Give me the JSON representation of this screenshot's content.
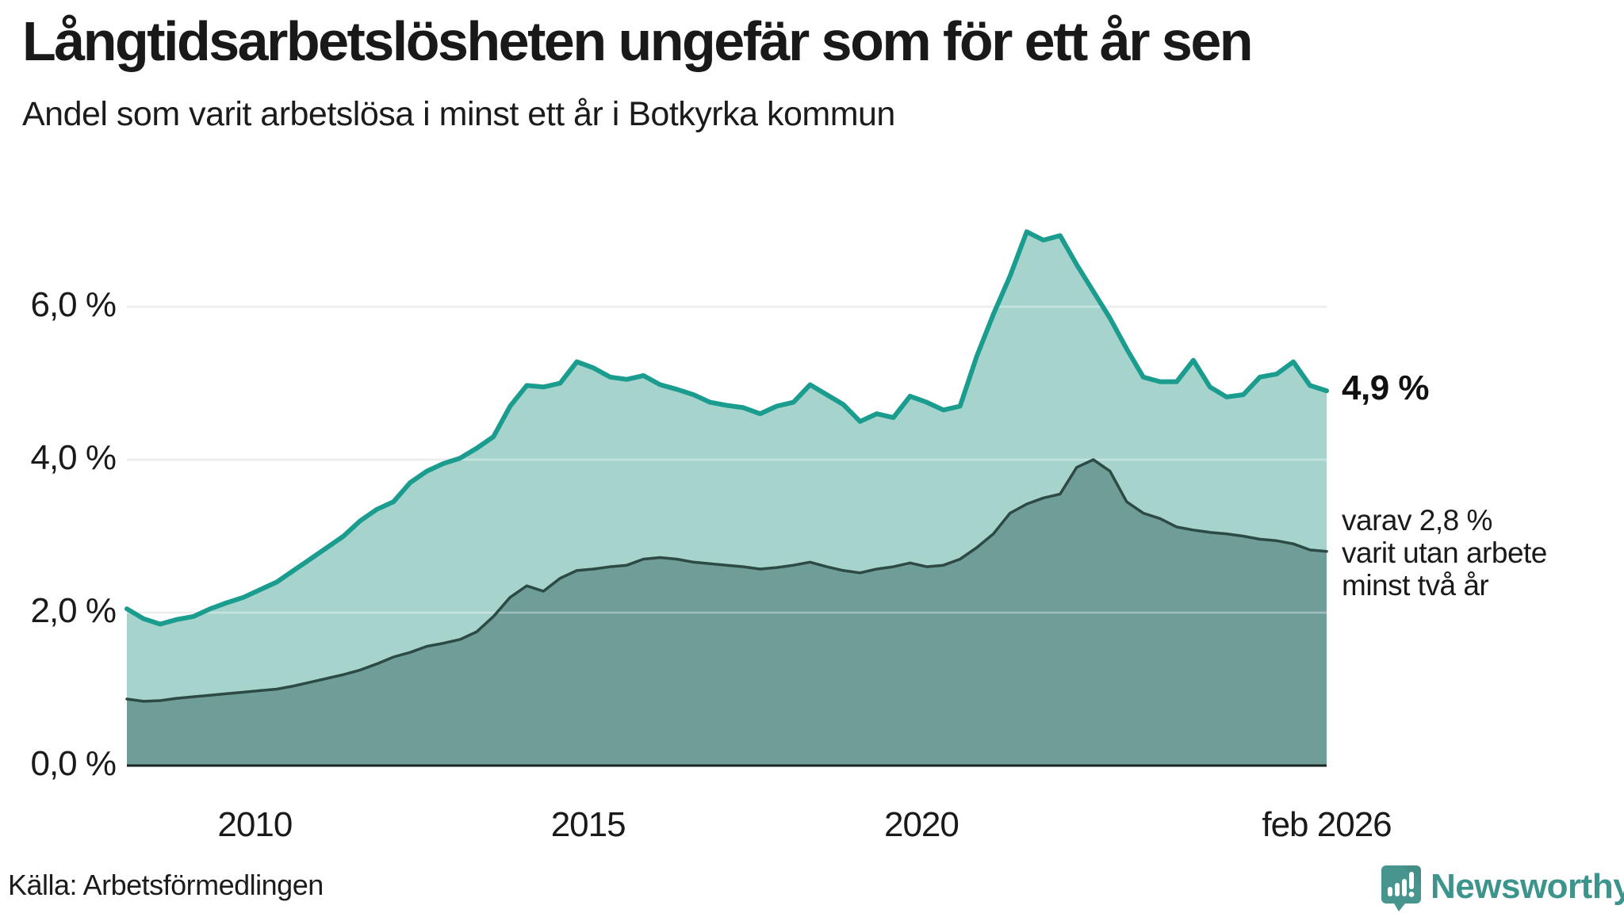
{
  "title": "Långtidsarbetslösheten ungefär som för ett år sen",
  "subtitle": "Andel som varit arbetslösa i minst ett år i Botkyrka kommun",
  "source": "Källa: Arbetsförmedlingen",
  "annotations": {
    "latest_total": "4,9 %",
    "two_year_note": "varav 2,8 %\nvarit utan arbete\nminst två år"
  },
  "logo": {
    "brand": "Newsworthy",
    "icon": "newsworthy-speech-bubble-chart-icon",
    "brand_color": "#3d948c",
    "icon_color": "#47958e",
    "icon_shade_color": "#3c857f"
  },
  "colors": {
    "total_line": "#1a9c8e",
    "total_fill": "#a6d4cd",
    "two_year_line": "#2d4a45",
    "two_year_fill": "#6f9e99",
    "gridline": "#e2e2e2",
    "gridline_overlay": "rgba(255,255,255,0.35)",
    "axis_line": "#1b2624",
    "text": "#1a1a1a"
  },
  "chart_data": {
    "type": "area",
    "title": "Långtidsarbetslösheten ungefär som för ett år sen",
    "subtitle": "Andel som varit arbetslösa i minst ett år i Botkyrka kommun",
    "unit": "%",
    "x_range": [
      2008.08,
      2026.08
    ],
    "ylim": [
      0,
      7.9
    ],
    "grid": "horizontal",
    "y_ticks": [
      {
        "label": "0,0 %",
        "value": 0
      },
      {
        "label": "2,0 %",
        "value": 2
      },
      {
        "label": "4,0 %",
        "value": 4
      },
      {
        "label": "6,0 %",
        "value": 6
      }
    ],
    "x_ticks": [
      {
        "label": "2010",
        "year": 2010.0
      },
      {
        "label": "2015",
        "year": 2015.0
      },
      {
        "label": "2020",
        "year": 2020.0
      },
      {
        "label": "feb 2026",
        "year": 2026.08
      }
    ],
    "x": [
      2008.08,
      2008.33,
      2008.58,
      2008.83,
      2009.08,
      2009.33,
      2009.58,
      2009.83,
      2010.08,
      2010.33,
      2010.58,
      2010.83,
      2011.08,
      2011.33,
      2011.58,
      2011.83,
      2012.08,
      2012.33,
      2012.58,
      2012.83,
      2013.08,
      2013.33,
      2013.58,
      2013.83,
      2014.08,
      2014.33,
      2014.58,
      2014.83,
      2015.08,
      2015.33,
      2015.58,
      2015.83,
      2016.08,
      2016.33,
      2016.58,
      2016.83,
      2017.08,
      2017.33,
      2017.58,
      2017.83,
      2018.08,
      2018.33,
      2018.58,
      2018.83,
      2019.08,
      2019.33,
      2019.58,
      2019.83,
      2020.08,
      2020.33,
      2020.58,
      2020.83,
      2021.08,
      2021.33,
      2021.58,
      2021.83,
      2022.08,
      2022.33,
      2022.58,
      2022.83,
      2023.08,
      2023.33,
      2023.58,
      2023.83,
      2024.08,
      2024.33,
      2024.58,
      2024.83,
      2025.08,
      2025.33,
      2025.58,
      2025.83,
      2026.08
    ],
    "series": [
      {
        "name": "Arbetslösa minst ett år",
        "end_label": "4,9 %",
        "values": [
          2.05,
          1.92,
          1.85,
          1.91,
          1.95,
          2.05,
          2.13,
          2.2,
          2.3,
          2.4,
          2.55,
          2.7,
          2.85,
          3.0,
          3.2,
          3.35,
          3.45,
          3.7,
          3.85,
          3.95,
          4.02,
          4.15,
          4.3,
          4.7,
          4.97,
          4.95,
          5.0,
          5.28,
          5.2,
          5.08,
          5.05,
          5.1,
          4.98,
          4.92,
          4.85,
          4.75,
          4.71,
          4.68,
          4.6,
          4.7,
          4.75,
          4.98,
          4.85,
          4.72,
          4.5,
          4.6,
          4.55,
          4.83,
          4.75,
          4.65,
          4.7,
          5.35,
          5.9,
          6.4,
          6.98,
          6.87,
          6.93,
          6.55,
          6.2,
          5.85,
          5.45,
          5.08,
          5.02,
          5.02,
          5.3,
          4.95,
          4.82,
          4.85,
          5.08,
          5.12,
          5.28,
          4.97,
          4.9
        ]
      },
      {
        "name": "Utan arbete minst två år",
        "end_label": "2,8 %",
        "values": [
          0.87,
          0.84,
          0.85,
          0.88,
          0.9,
          0.92,
          0.94,
          0.96,
          0.98,
          1.0,
          1.04,
          1.09,
          1.14,
          1.19,
          1.25,
          1.33,
          1.42,
          1.48,
          1.56,
          1.6,
          1.65,
          1.75,
          1.95,
          2.2,
          2.35,
          2.28,
          2.45,
          2.55,
          2.57,
          2.6,
          2.62,
          2.7,
          2.72,
          2.7,
          2.66,
          2.64,
          2.62,
          2.6,
          2.57,
          2.59,
          2.62,
          2.66,
          2.6,
          2.55,
          2.52,
          2.57,
          2.6,
          2.65,
          2.6,
          2.62,
          2.7,
          2.85,
          3.03,
          3.3,
          3.42,
          3.5,
          3.55,
          3.9,
          4.0,
          3.85,
          3.45,
          3.3,
          3.23,
          3.12,
          3.08,
          3.05,
          3.03,
          3.0,
          2.96,
          2.94,
          2.9,
          2.82,
          2.8
        ]
      }
    ]
  }
}
